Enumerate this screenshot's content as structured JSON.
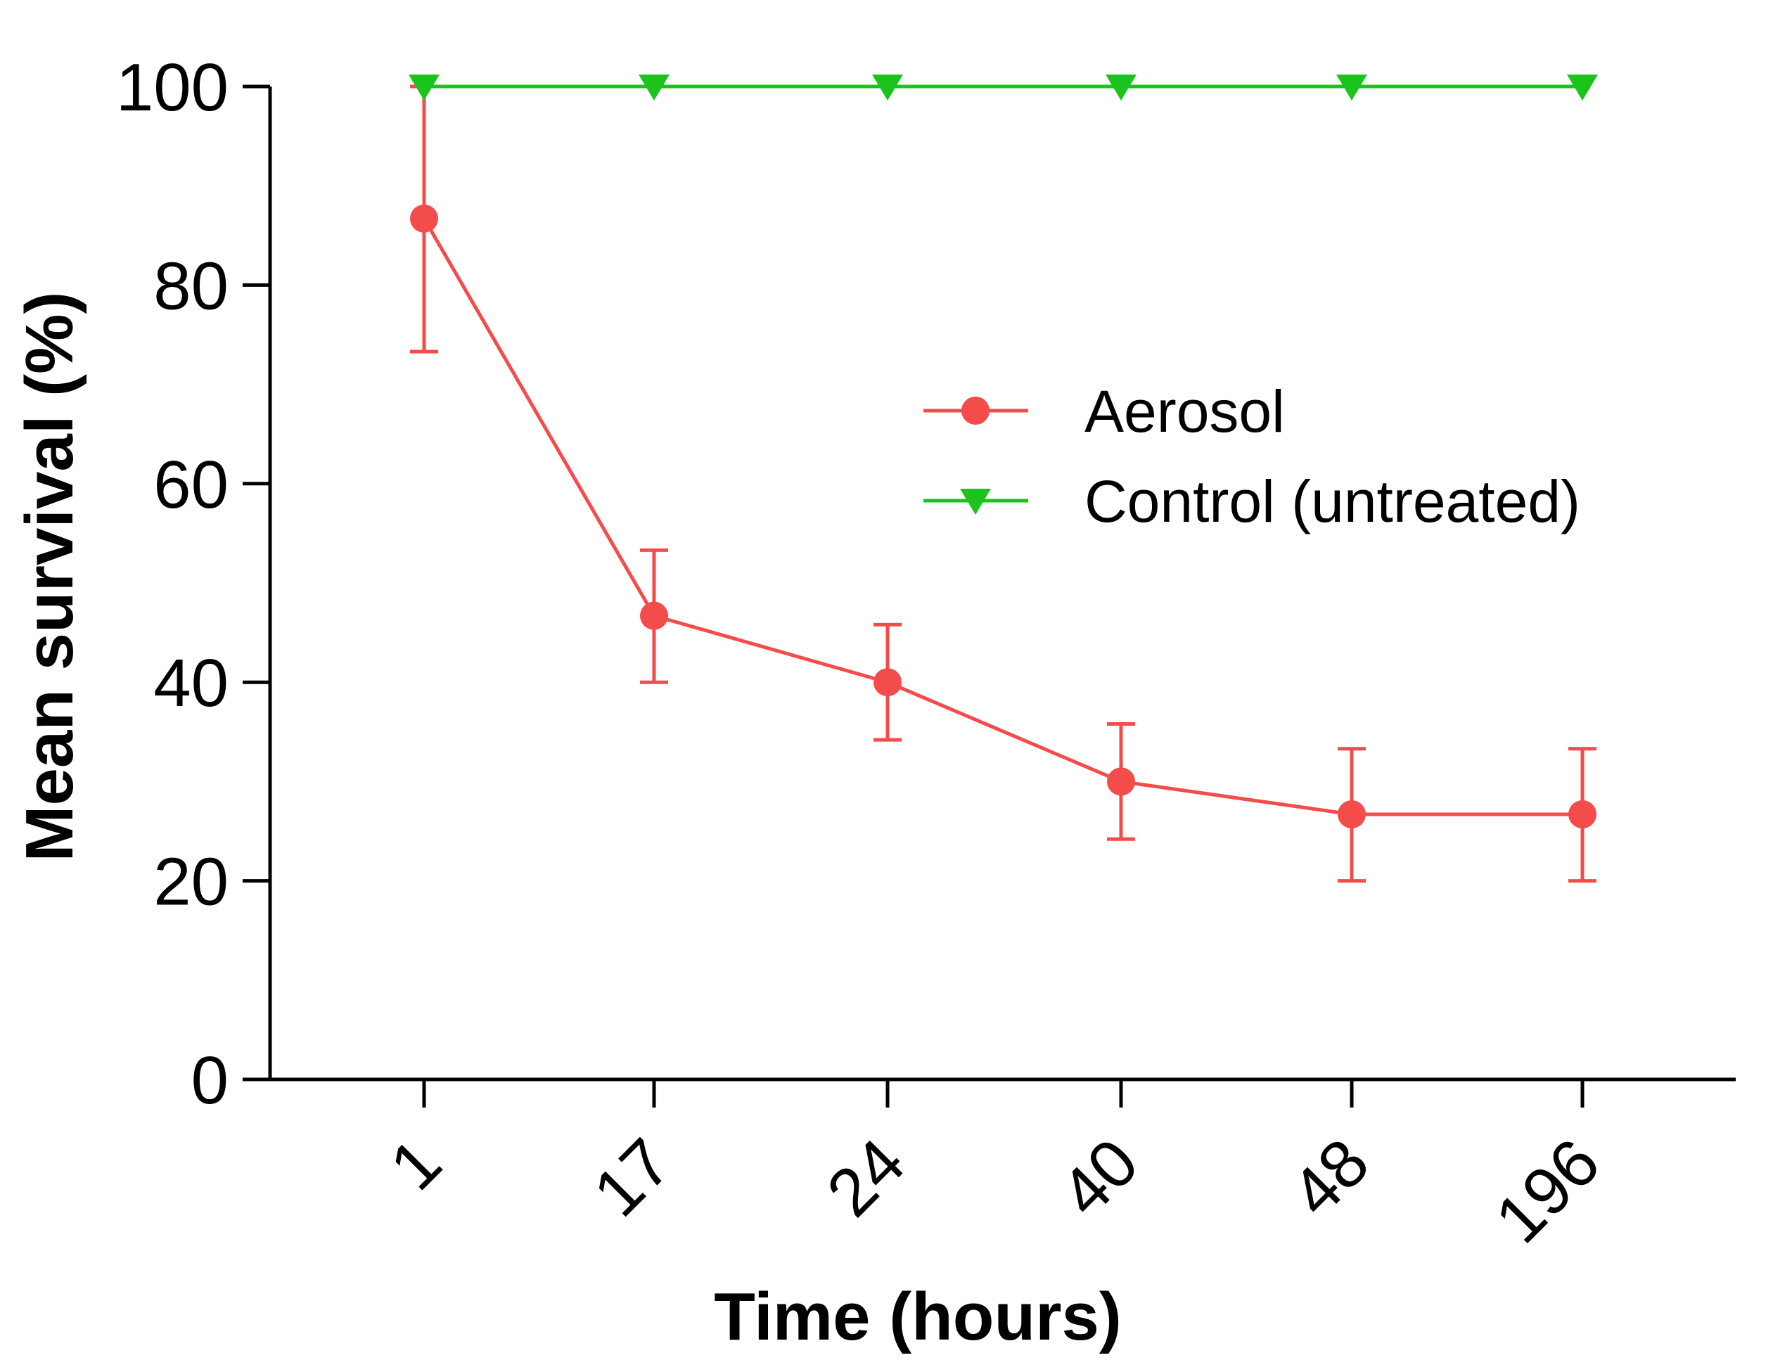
{
  "chart_data": {
    "type": "line",
    "title": "",
    "xlabel": "Time (hours)",
    "ylabel": "Mean survival (%)",
    "categories": [
      "1",
      "17",
      "24",
      "40",
      "48",
      "196"
    ],
    "ylim": [
      0,
      100
    ],
    "yticks": [
      0,
      20,
      40,
      60,
      80,
      100
    ],
    "grid": false,
    "legend_position": "right-center",
    "series": [
      {
        "name": "Aerosol",
        "color": "#f44b4b",
        "marker": "circle",
        "values": [
          86.7,
          46.7,
          40.0,
          30.0,
          26.7,
          26.7
        ],
        "error_upper": [
          100.0,
          53.3,
          45.8,
          35.8,
          33.3,
          33.3
        ],
        "error_lower": [
          73.3,
          40.0,
          34.2,
          24.2,
          20.0,
          20.0
        ]
      },
      {
        "name": "Control (untreated)",
        "color": "#1dc31d",
        "marker": "triangle-down",
        "values": [
          100,
          100,
          100,
          100,
          100,
          100
        ]
      }
    ]
  }
}
